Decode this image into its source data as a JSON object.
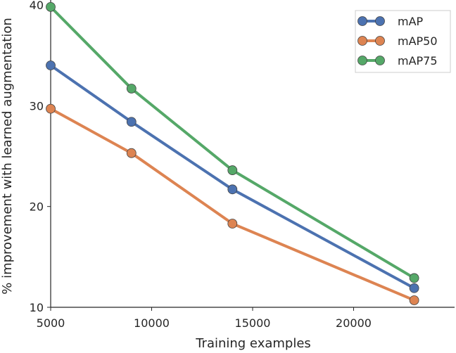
{
  "chart_data": {
    "type": "line",
    "title": "",
    "xlabel": "Training examples",
    "ylabel": "% improvement with learned augmentation",
    "xlim": [
      5000,
      25000
    ],
    "ylim": [
      10,
      40
    ],
    "xticks": [
      5000,
      10000,
      15000,
      20000
    ],
    "xtick_labels": [
      "5000",
      "10000",
      "15000",
      "20000"
    ],
    "yticks": [
      10,
      20,
      30,
      40
    ],
    "ytick_labels": [
      "10",
      "20",
      "30",
      "40"
    ],
    "grid": false,
    "legend_position": "top-right",
    "x": [
      5000,
      9000,
      14000,
      23000
    ],
    "series": [
      {
        "name": "mAP",
        "color": "#4C72B0",
        "values": [
          34.0,
          28.4,
          21.7,
          11.9
        ]
      },
      {
        "name": "mAP50",
        "color": "#DD8452",
        "values": [
          29.7,
          25.3,
          18.3,
          10.7
        ]
      },
      {
        "name": "mAP75",
        "color": "#55A868",
        "values": [
          39.8,
          31.7,
          23.6,
          12.9
        ]
      }
    ]
  }
}
